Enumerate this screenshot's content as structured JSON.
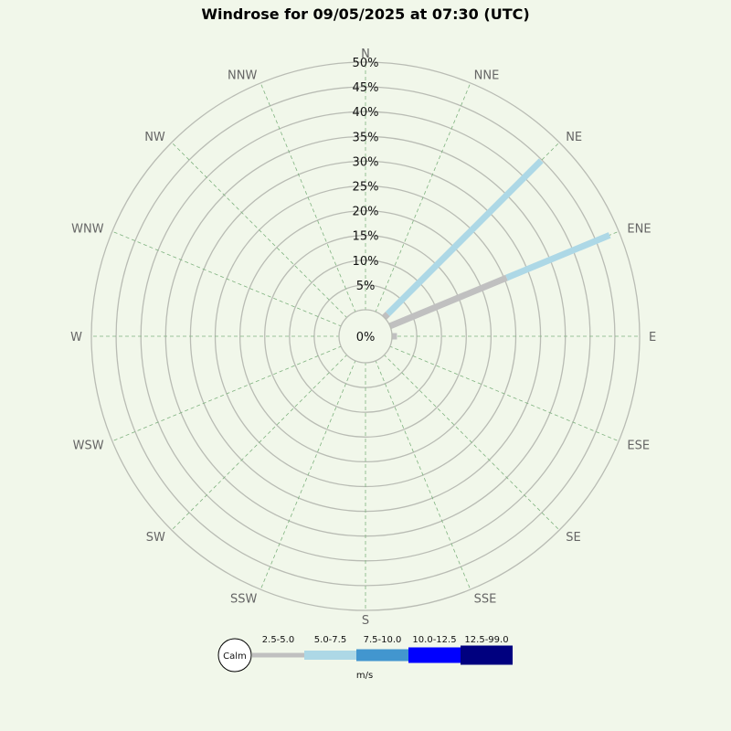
{
  "chart_data": {
    "type": "windrose",
    "title": "Windrose for 09/05/2025 at 07:30 (UTC)",
    "directions": [
      "N",
      "NNE",
      "NE",
      "ENE",
      "E",
      "ESE",
      "SE",
      "SSE",
      "S",
      "SSW",
      "SW",
      "WSW",
      "W",
      "WNW",
      "NW",
      "NNW"
    ],
    "radial_ticks": [
      "5%",
      "10%",
      "15%",
      "20%",
      "25%",
      "30%",
      "35%",
      "40%",
      "45%",
      "50%"
    ],
    "radial_max": 50,
    "center_label": "0%",
    "calm_label": "Calm",
    "unit_label": "m/s",
    "speed_bins": [
      {
        "label": "2.5-5.0",
        "color": "#c0c0c0"
      },
      {
        "label": "5.0-7.5",
        "color": "#add8e6"
      },
      {
        "label": "7.5-10.0",
        "color": "#4296cf"
      },
      {
        "label": "10.0-12.5",
        "color": "#0000ff"
      },
      {
        "label": "12.5-99.0",
        "color": "#00007f"
      }
    ],
    "series": [
      {
        "bin": "2.5-5.0",
        "values": [
          0,
          0,
          1,
          25.5,
          1,
          0,
          0,
          0,
          0,
          0,
          0,
          0,
          0,
          0,
          0,
          0
        ]
      },
      {
        "bin": "5.0-7.5",
        "values": [
          0,
          0,
          43.8,
          22.5,
          0,
          0,
          0,
          0,
          0,
          0,
          0,
          0,
          0,
          0,
          0,
          0
        ]
      },
      {
        "bin": "7.5-10.0",
        "values": [
          0,
          0,
          0,
          0,
          0,
          0,
          0,
          0,
          0,
          0,
          0,
          0,
          0,
          0,
          0,
          0
        ]
      },
      {
        "bin": "10.0-12.5",
        "values": [
          0,
          0,
          0,
          0,
          0,
          0,
          0,
          0,
          0,
          0,
          0,
          0,
          0,
          0,
          0,
          0
        ]
      },
      {
        "bin": "12.5-99.0",
        "values": [
          0,
          0,
          0,
          0,
          0,
          0,
          0,
          0,
          0,
          0,
          0,
          0,
          0,
          0,
          0,
          0
        ]
      }
    ]
  }
}
